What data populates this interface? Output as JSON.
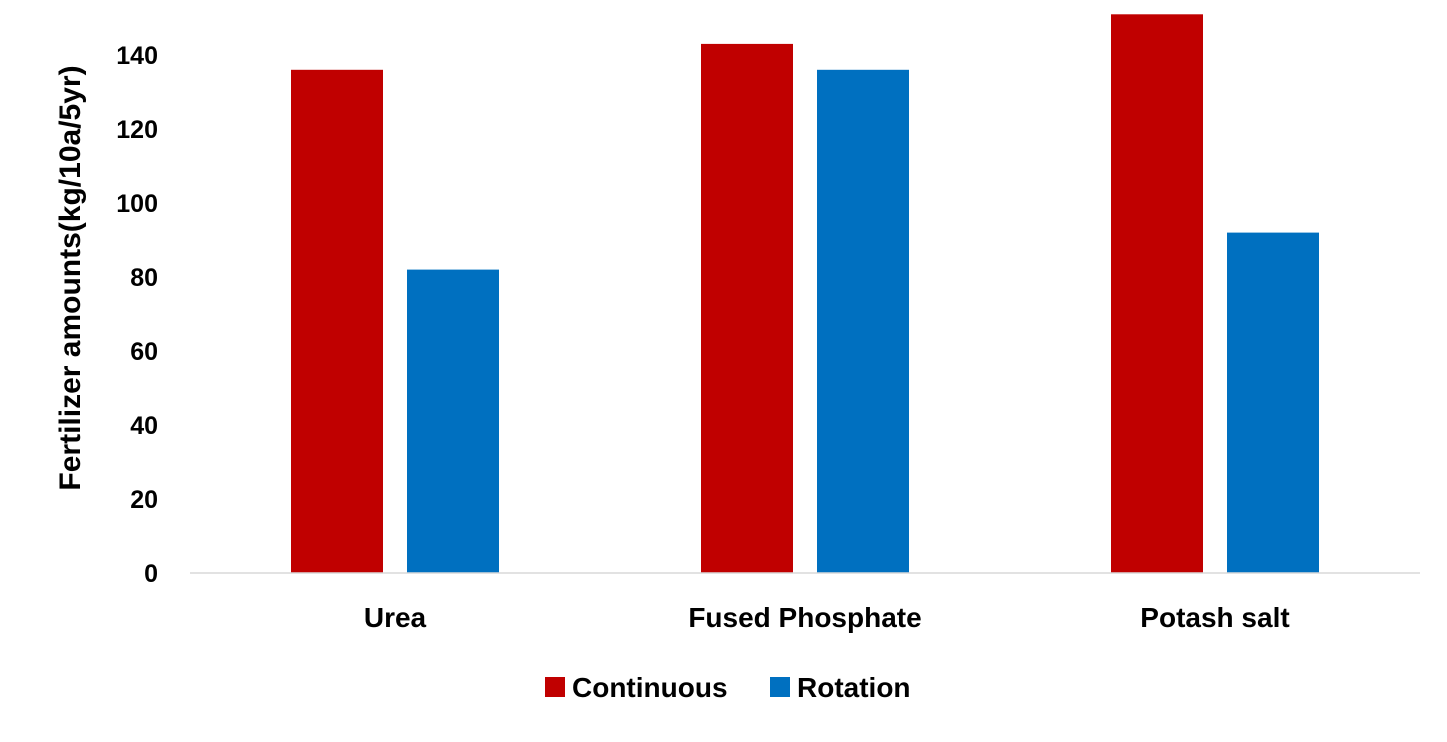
{
  "chart_data": {
    "type": "bar",
    "title": "",
    "xlabel": "",
    "ylabel": "Fertilizer amounts(kg/10a/5yr)",
    "categories": [
      "Urea",
      "Fused Phosphate",
      "Potash salt"
    ],
    "series": [
      {
        "name": "Continuous",
        "color": "#C00000",
        "values": [
          136,
          143,
          151
        ]
      },
      {
        "name": "Rotation",
        "color": "#0070C0",
        "values": [
          82,
          136,
          92
        ]
      }
    ],
    "ylim": [
      0,
      150
    ],
    "yticks": [
      0,
      20,
      40,
      60,
      80,
      100,
      120,
      140
    ],
    "grid": false,
    "legend_position": "bottom"
  }
}
